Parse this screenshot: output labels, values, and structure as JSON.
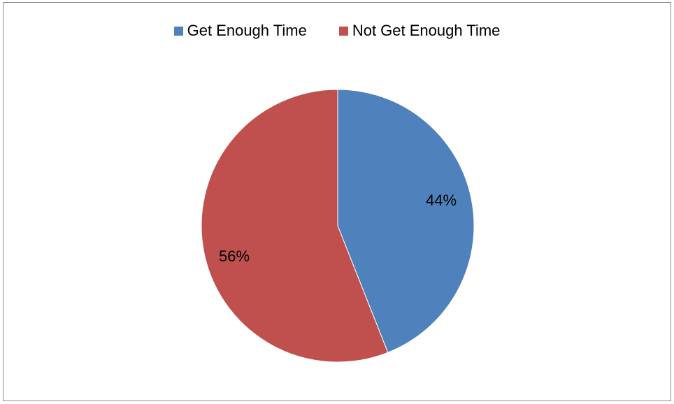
{
  "chart_data": {
    "type": "pie",
    "categories": [
      "Get Enough Time",
      "Not Get Enough Time"
    ],
    "values": [
      44,
      56
    ],
    "labels": [
      "44%",
      "56%"
    ],
    "colors": [
      "#4f81bd",
      "#c0504d"
    ],
    "legend": "top"
  }
}
